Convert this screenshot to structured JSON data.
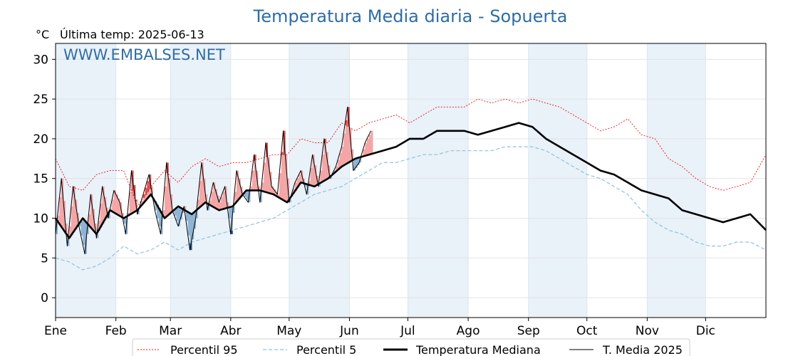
{
  "chart_data": {
    "type": "line",
    "title": "Temperatura Media diaria - Sopuerta",
    "unit": "°C",
    "subtitle": "Última temp: 2025-06-13",
    "watermark": "WWW.EMBALSES.NET",
    "xlabel": "",
    "ylabel": "",
    "months": [
      "Ene",
      "Feb",
      "Mar",
      "Abr",
      "May",
      "Jun",
      "Jul",
      "Ago",
      "Sep",
      "Oct",
      "Nov",
      "Dic"
    ],
    "month_start_day": [
      1,
      32,
      60,
      91,
      121,
      152,
      182,
      213,
      244,
      274,
      305,
      335
    ],
    "yticks": [
      0,
      5,
      10,
      15,
      20,
      25,
      30
    ],
    "ylim": [
      -2.5,
      32
    ],
    "xlim": [
      1,
      366
    ],
    "grid": true,
    "legend_position": "bottom",
    "colors": {
      "p95": "#e8161c",
      "p5": "#8cc4da",
      "median": "#000000",
      "t2025": "#000000",
      "above_fill": "#f4a6a6",
      "above_fill_strong": "#e05050",
      "below_fill": "#8fb4d3",
      "below_fill_strong": "#1f5a96",
      "band": "#e9f1f9",
      "title": "#2e6da4"
    },
    "series": [
      {
        "key": "p95",
        "name": "Percentil 95",
        "style": "dotted-red",
        "x": [
          1,
          8,
          15,
          22,
          29,
          36,
          43,
          50,
          57,
          64,
          71,
          78,
          85,
          92,
          99,
          106,
          113,
          120,
          127,
          134,
          141,
          148,
          155,
          162,
          169,
          176,
          183,
          190,
          197,
          204,
          211,
          218,
          225,
          232,
          239,
          246,
          253,
          260,
          267,
          274,
          281,
          288,
          295,
          302,
          309,
          316,
          323,
          330,
          337,
          344,
          351,
          358,
          366
        ],
        "values": [
          17.5,
          14,
          13.5,
          15.5,
          16,
          16,
          11.5,
          14,
          16,
          14.5,
          16.5,
          17.5,
          16.5,
          17,
          17,
          17.5,
          18,
          18,
          20,
          19.5,
          19.5,
          22,
          21,
          22,
          22.5,
          23,
          22,
          23,
          24,
          24,
          24,
          25,
          24.5,
          25,
          24.5,
          25,
          24.5,
          24,
          23,
          22,
          21,
          21.5,
          22.5,
          20.5,
          20,
          17.5,
          16.5,
          15,
          14,
          13.5,
          14,
          14.5,
          18
        ]
      },
      {
        "key": "p5",
        "name": "Percentil 5",
        "style": "dashed-lightblue",
        "x": [
          1,
          8,
          15,
          22,
          29,
          36,
          43,
          50,
          57,
          64,
          71,
          78,
          85,
          92,
          99,
          106,
          113,
          120,
          127,
          134,
          141,
          148,
          155,
          162,
          169,
          176,
          183,
          190,
          197,
          204,
          211,
          218,
          225,
          232,
          239,
          246,
          253,
          260,
          267,
          274,
          281,
          288,
          295,
          302,
          309,
          316,
          323,
          330,
          337,
          344,
          351,
          358,
          366
        ],
        "values": [
          5,
          4.5,
          3.5,
          4,
          5,
          6.5,
          5.5,
          6,
          7,
          6,
          7,
          7.5,
          8,
          8.5,
          9,
          9.5,
          10,
          11,
          12,
          13,
          13.5,
          14,
          15,
          16,
          17,
          17,
          17.5,
          18,
          18,
          18.5,
          18.5,
          18.5,
          18.5,
          19,
          19,
          19,
          18.5,
          17.5,
          16.5,
          15.5,
          15,
          14,
          13,
          11,
          9.5,
          8.5,
          8,
          7,
          6.5,
          6.5,
          7,
          7,
          6
        ]
      },
      {
        "key": "median",
        "name": "Temperatura Mediana",
        "style": "thick-black",
        "x": [
          1,
          8,
          15,
          22,
          29,
          36,
          43,
          50,
          57,
          64,
          71,
          78,
          85,
          92,
          99,
          106,
          113,
          120,
          127,
          134,
          141,
          148,
          155,
          162,
          169,
          176,
          183,
          190,
          197,
          204,
          211,
          218,
          225,
          232,
          239,
          246,
          253,
          260,
          267,
          274,
          281,
          288,
          295,
          302,
          309,
          316,
          323,
          330,
          337,
          344,
          351,
          358,
          366
        ],
        "values": [
          10,
          7.5,
          10,
          8,
          11,
          10,
          11,
          13,
          10,
          11.5,
          10.5,
          12,
          11,
          11.5,
          13.5,
          13.5,
          13,
          12,
          14.5,
          14,
          15,
          16.5,
          17.5,
          18,
          18.5,
          19,
          20,
          20,
          21,
          21,
          21,
          20.5,
          21,
          21.5,
          22,
          21.5,
          20,
          19,
          18,
          17,
          16,
          15.5,
          14.5,
          13.5,
          13,
          12.5,
          11,
          10.5,
          10,
          9.5,
          10,
          10.5,
          8.5
        ]
      },
      {
        "key": "t2025",
        "name": "T. Media 2025",
        "style": "thin-black",
        "x": [
          1,
          4,
          7,
          10,
          13,
          16,
          19,
          22,
          25,
          28,
          31,
          34,
          37,
          40,
          43,
          46,
          49,
          52,
          55,
          58,
          61,
          64,
          67,
          70,
          73,
          76,
          79,
          82,
          85,
          88,
          91,
          94,
          97,
          100,
          103,
          106,
          109,
          112,
          115,
          118,
          121,
          124,
          127,
          130,
          133,
          136,
          139,
          142,
          145,
          148,
          151,
          154,
          157,
          160,
          163
        ],
        "values": [
          8,
          15,
          6.5,
          14,
          9,
          5.5,
          13,
          7.5,
          14,
          10,
          13.5,
          12,
          8,
          16,
          10.5,
          13,
          15.5,
          11,
          8,
          17,
          11,
          9,
          11.5,
          6,
          10,
          17,
          11,
          14.5,
          12,
          14,
          8,
          16,
          13,
          12,
          18,
          12,
          19.5,
          14,
          13,
          21,
          12,
          14.5,
          16,
          13,
          18,
          14,
          20,
          15,
          16.5,
          19,
          24,
          16,
          17,
          19.5,
          21
        ]
      }
    ]
  }
}
